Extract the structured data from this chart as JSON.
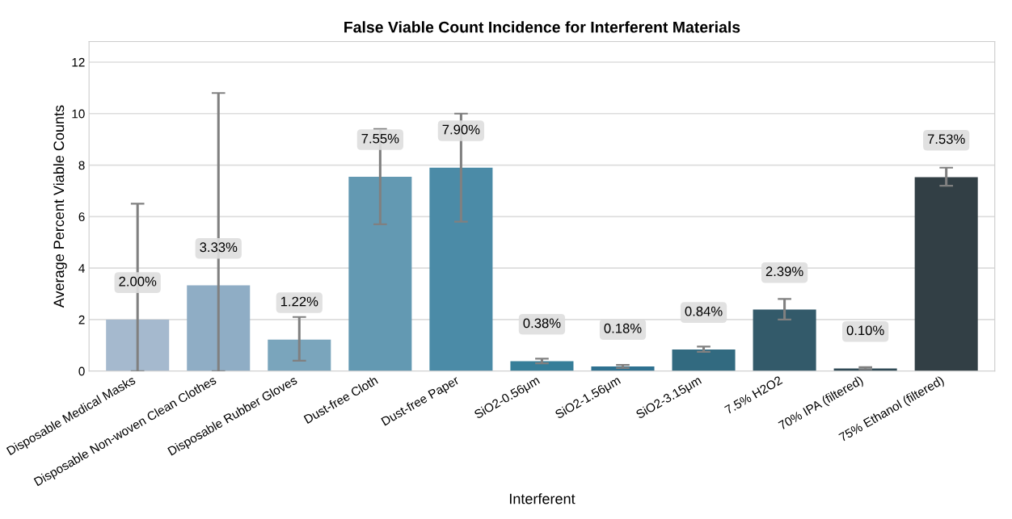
{
  "chart_data": {
    "type": "bar",
    "title": "False Viable Count Incidence for Interferent Materials",
    "xlabel": "Interferent",
    "ylabel": "Average Percent Viable Counts",
    "categories": [
      "Disposable Medical Masks",
      "Disposable Non-woven Clean Clothes",
      "Disposable Rubber Gloves",
      "Dust-free Cloth",
      "Dust-free Paper",
      "SiO2-0.56μm",
      "SiO2-1.56μm",
      "SiO2-3.15μm",
      "7.5% H2O2",
      "70% IPA (filtered)",
      "75% Ethanol (filtered)"
    ],
    "values": [
      2.0,
      3.33,
      1.22,
      7.55,
      7.9,
      0.38,
      0.18,
      0.84,
      2.39,
      0.1,
      7.53
    ],
    "colors": [
      "#a5b9ce",
      "#8fadc5",
      "#7aa5bc",
      "#6399b2",
      "#4b8ba7",
      "#367e99",
      "#2f7190",
      "#326a80",
      "#335a6a",
      "#304a56",
      "#323f45"
    ],
    "errors": [
      [
        0,
        6.5
      ],
      [
        0,
        10.8
      ],
      [
        0.4,
        2.1
      ],
      [
        5.7,
        9.4
      ],
      [
        5.8,
        10.0
      ],
      [
        0.3,
        0.48
      ],
      [
        0.12,
        0.24
      ],
      [
        0.75,
        0.95
      ],
      [
        2.0,
        2.8
      ],
      [
        0.07,
        0.15
      ],
      [
        7.2,
        7.9
      ]
    ],
    "value_labels": [
      "2.00%",
      "3.33%",
      "1.22%",
      "7.55%",
      "7.90%",
      "0.38%",
      "0.18%",
      "0.84%",
      "2.39%",
      "0.10%",
      "7.53%"
    ],
    "ylim": [
      0,
      12.8
    ],
    "yticks": [
      0,
      2,
      4,
      6,
      8,
      10,
      12
    ],
    "grid": "y"
  }
}
